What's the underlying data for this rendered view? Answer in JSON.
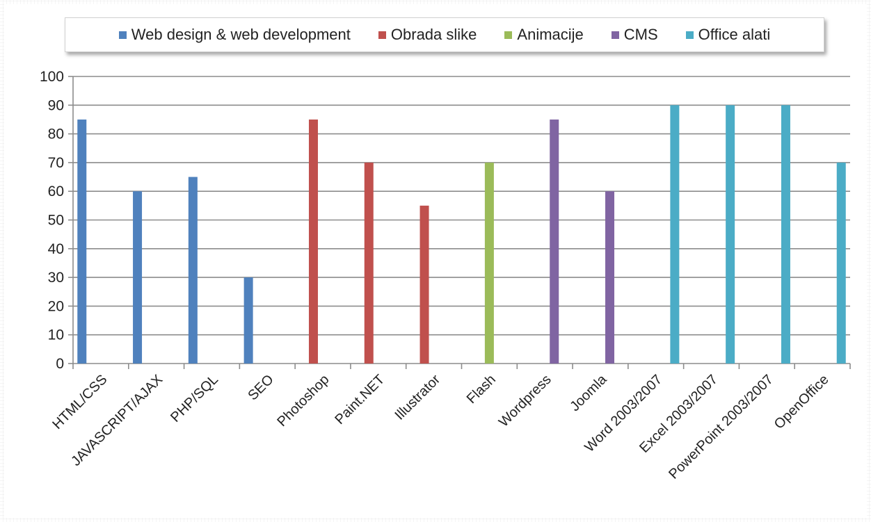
{
  "chart_data": {
    "type": "bar",
    "categories": [
      "HTML/CSS",
      "JAVASCRIPT/AJAX",
      "PHP/SQL",
      "SEO",
      "Photoshop",
      "Paint.NET",
      "Illustrator",
      "Flash",
      "Wordpress",
      "Joomla",
      "Word 2003/2007",
      "Excel 2003/2007",
      "PowerPoint 2003/2007",
      "OpenOffice"
    ],
    "series": [
      {
        "name": "Web design & web development",
        "color": "#4F81BD",
        "values": [
          85,
          60,
          65,
          30,
          null,
          null,
          null,
          null,
          null,
          null,
          null,
          null,
          null,
          null
        ]
      },
      {
        "name": "Obrada slike",
        "color": "#C0504D",
        "values": [
          null,
          null,
          null,
          null,
          85,
          70,
          55,
          null,
          null,
          null,
          null,
          null,
          null,
          null
        ]
      },
      {
        "name": "Animacije",
        "color": "#9BBB59",
        "values": [
          null,
          null,
          null,
          null,
          null,
          null,
          null,
          70,
          null,
          null,
          null,
          null,
          null,
          null
        ]
      },
      {
        "name": "CMS",
        "color": "#8064A2",
        "values": [
          null,
          null,
          null,
          null,
          null,
          null,
          null,
          null,
          85,
          60,
          null,
          null,
          null,
          null
        ]
      },
      {
        "name": "Office alati",
        "color": "#4BACC6",
        "values": [
          null,
          null,
          null,
          null,
          null,
          null,
          null,
          null,
          null,
          null,
          90,
          90,
          90,
          70
        ]
      }
    ],
    "yticks": [
      "0",
      "10",
      "20",
      "30",
      "40",
      "50",
      "60",
      "70",
      "80",
      "90",
      "100"
    ],
    "ylim": [
      0,
      100
    ],
    "grid": true,
    "legend_position": "top"
  }
}
